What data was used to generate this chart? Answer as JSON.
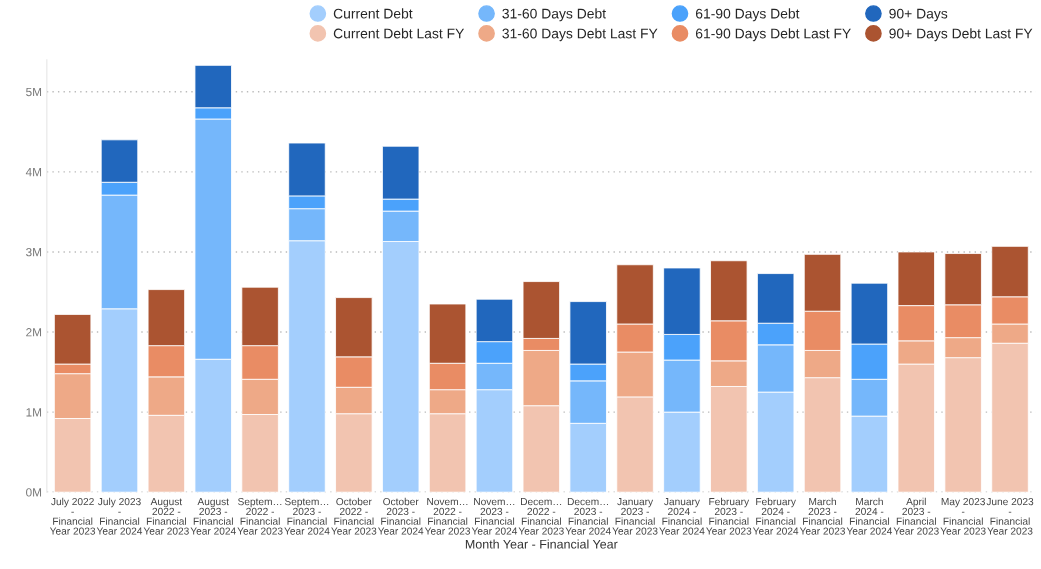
{
  "chart_data": {
    "type": "bar",
    "stacked": true,
    "xlabel": "Month Year - Financial Year",
    "categories": [
      "July 2022 - Financial Year 2023",
      "July 2023 - Financial Year 2024",
      "August 2022 - Financial Year 2023",
      "August 2023 - Financial Year 2024",
      "Septem… 2022 - Financial Year 2023",
      "Septem… 2023 - Financial Year 2024",
      "October 2022 - Financial Year 2023",
      "October 2023 - Financial Year 2024",
      "Novem… 2022 - Financial Year 2023",
      "Novem… 2023 - Financial Year 2024",
      "Decem… 2022 - Financial Year 2023",
      "Decem… 2023 - Financial Year 2024",
      "January 2023 - Financial Year 2023",
      "January 2024 - Financial Year 2024",
      "February 2023 - Financial Year 2023",
      "February 2024 - Financial Year 2024",
      "March 2023 - Financial Year 2023",
      "March 2024 - Financial Year 2024",
      "April 2023 - Financial Year 2023",
      "May 2023 - Financial Year 2023",
      "June 2023 - Financial Year 2023"
    ],
    "series": [
      {
        "name": "Current Debt",
        "color": "#a3cefd",
        "values": [
          null,
          2.29,
          null,
          1.66,
          null,
          3.14,
          null,
          3.13,
          null,
          1.28,
          null,
          0.86,
          null,
          1.0,
          null,
          1.25,
          null,
          0.95,
          null,
          null,
          null
        ]
      },
      {
        "name": "31-60 Days Debt",
        "color": "#75b7fb",
        "values": [
          null,
          1.42,
          null,
          3.0,
          null,
          0.4,
          null,
          0.38,
          null,
          0.33,
          null,
          0.53,
          null,
          0.65,
          null,
          0.59,
          null,
          0.46,
          null,
          null,
          null
        ]
      },
      {
        "name": "61-90 Days Debt",
        "color": "#4ba2fb",
        "values": [
          null,
          0.16,
          null,
          0.14,
          null,
          0.16,
          null,
          0.15,
          null,
          0.27,
          null,
          0.21,
          null,
          0.32,
          null,
          0.27,
          null,
          0.44,
          null,
          null,
          null
        ]
      },
      {
        "name": "90+ Days",
        "color": "#2167bd",
        "values": [
          null,
          0.53,
          null,
          0.53,
          null,
          0.66,
          null,
          0.66,
          null,
          0.53,
          null,
          0.78,
          null,
          0.83,
          null,
          0.62,
          null,
          0.76,
          null,
          null,
          null
        ]
      },
      {
        "name": "Current Debt Last FY",
        "color": "#f2c4b0",
        "values": [
          0.92,
          null,
          0.96,
          null,
          0.97,
          null,
          0.98,
          null,
          0.98,
          null,
          1.08,
          null,
          1.19,
          null,
          1.32,
          null,
          1.43,
          null,
          1.6,
          1.68,
          1.86
        ]
      },
      {
        "name": "31-60 Days Debt Last FY",
        "color": "#eea987",
        "values": [
          0.56,
          null,
          0.48,
          null,
          0.44,
          null,
          0.33,
          null,
          0.3,
          null,
          0.69,
          null,
          0.56,
          null,
          0.32,
          null,
          0.34,
          null,
          0.29,
          0.25,
          0.24
        ]
      },
      {
        "name": "61-90 Days Debt Last FY",
        "color": "#e98c64",
        "values": [
          0.12,
          null,
          0.39,
          null,
          0.42,
          null,
          0.38,
          null,
          0.33,
          null,
          0.15,
          null,
          0.35,
          null,
          0.5,
          null,
          0.49,
          null,
          0.44,
          0.41,
          0.34
        ]
      },
      {
        "name": "90+ Days Debt Last FY",
        "color": "#ab5431",
        "values": [
          0.62,
          null,
          0.7,
          null,
          0.73,
          null,
          0.74,
          null,
          0.74,
          null,
          0.71,
          null,
          0.74,
          null,
          0.75,
          null,
          0.71,
          null,
          0.67,
          0.64,
          0.63
        ]
      }
    ],
    "ylim": [
      0,
      5.4
    ],
    "yticks": [
      {
        "value": 0,
        "label": "0M"
      },
      {
        "value": 1,
        "label": "1M"
      },
      {
        "value": 2,
        "label": "2M"
      },
      {
        "value": 3,
        "label": "3M"
      },
      {
        "value": 4,
        "label": "4M"
      },
      {
        "value": 5,
        "label": "5M"
      }
    ],
    "grid": "y",
    "legend": "top right"
  }
}
